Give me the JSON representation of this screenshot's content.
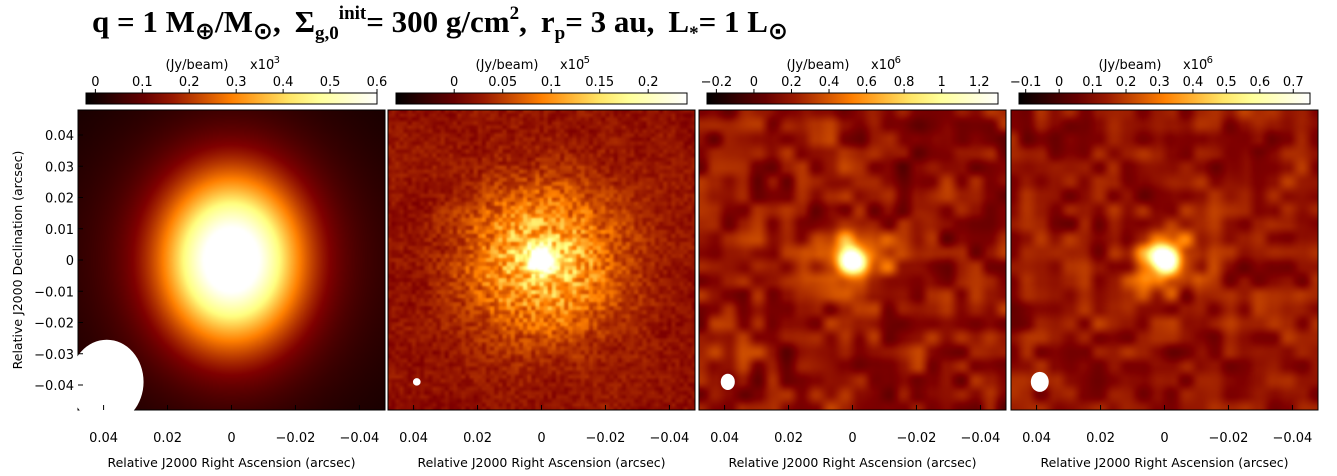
{
  "title": {
    "q": "q = 1 M",
    "earth": "⊕",
    "slash": "/M",
    "sun1": "⊙",
    "comma1": ",",
    "sigma": "Σ",
    "sigma_sub": "g,0",
    "sigma_sup": "init",
    "sigma_val": " = 300 g/cm",
    "sq": "2",
    "comma2": ",",
    "rp": "r",
    "rp_sub": "p",
    "rp_val": " = 3 au,",
    "lstar": "L",
    "lstar_sub": "*",
    "lstar_val": " = 1 L",
    "sun2": "⊙"
  },
  "chart_data": [
    {
      "type": "heatmap",
      "colorbar": {
        "label": "(Jy/beam)",
        "scale": "x10",
        "exponent": "-3",
        "range": [
          -0.02,
          0.6
        ],
        "ticks": [
          0,
          0.1,
          0.2,
          0.3,
          0.4,
          0.5,
          0.6
        ],
        "tick_labels": [
          "0",
          "0.1",
          "0.2",
          "0.3",
          "0.4",
          "0.5",
          "0.6"
        ]
      },
      "xlabel": "Relative J2000 Right Ascension (arcsec)",
      "ylabel": "Relative J2000 Declination (arcsec)",
      "xlim": [
        0.048,
        -0.048
      ],
      "ylim": [
        -0.048,
        0.048
      ],
      "xticks": [
        0.04,
        0.02,
        0,
        -0.02,
        -0.04
      ],
      "xtick_labels": [
        "0.04",
        "0.02",
        "0",
        "−0.02",
        "−0.04"
      ],
      "yticks": [
        0.04,
        0.03,
        0.02,
        0.01,
        0,
        -0.01,
        -0.02,
        -0.03,
        -0.04
      ],
      "ytick_labels": [
        "0.04",
        "0.03",
        "0.02",
        "0.01",
        "0",
        "−0.01",
        "−0.02",
        "−0.03",
        "−0.04"
      ],
      "peak": 0.6,
      "beam_major": 0.0135,
      "beam_minor": 0.0115,
      "image": "smooth",
      "noise": 0
    },
    {
      "type": "heatmap",
      "colorbar": {
        "label": "(Jy/beam)",
        "scale": "x10",
        "exponent": "-5",
        "range": [
          -0.06,
          0.24
        ],
        "ticks": [
          0,
          0.05,
          0.1,
          0.15,
          0.2
        ],
        "tick_labels": [
          "0",
          "0.05",
          "0.1",
          "0.15",
          "0.2"
        ]
      },
      "xlabel": "Relative J2000 Right Ascension (arcsec)",
      "xlim": [
        0.048,
        -0.048
      ],
      "ylim": [
        -0.048,
        0.048
      ],
      "xticks": [
        0.04,
        0.02,
        0,
        -0.02,
        -0.04
      ],
      "xtick_labels": [
        "0.04",
        "0.02",
        "0",
        "−0.02",
        "−0.04"
      ],
      "peak": 0.24,
      "beam_major": 0.0012,
      "beam_minor": 0.0012,
      "image": "grainy",
      "noise": 0.05
    },
    {
      "type": "heatmap",
      "colorbar": {
        "label": "(Jy/beam)",
        "scale": "x10",
        "exponent": "-6",
        "range": [
          -0.25,
          1.3
        ],
        "ticks": [
          -0.2,
          0,
          0.2,
          0.4,
          0.6,
          0.8,
          1,
          1.2
        ],
        "tick_labels": [
          "−0.2",
          "0",
          "0.2",
          "0.4",
          "0.6",
          "0.8",
          "1",
          "1.2"
        ]
      },
      "xlabel": "Relative J2000 Right Ascension (arcsec)",
      "xlim": [
        0.048,
        -0.048
      ],
      "ylim": [
        -0.048,
        0.048
      ],
      "xticks": [
        0.04,
        0.02,
        0,
        -0.02,
        -0.04
      ],
      "xtick_labels": [
        "0.04",
        "0.02",
        "0",
        "−0.02",
        "−0.04"
      ],
      "peak": 1.3,
      "beam_major": 0.0026,
      "beam_minor": 0.0022,
      "image": "blotchy",
      "noise": 0.12
    },
    {
      "type": "heatmap",
      "colorbar": {
        "label": "(Jy/beam)",
        "scale": "x10",
        "exponent": "-6",
        "range": [
          -0.12,
          0.75
        ],
        "ticks": [
          -0.1,
          0,
          0.1,
          0.2,
          0.3,
          0.4,
          0.5,
          0.6,
          0.7
        ],
        "tick_labels": [
          "−0.1",
          "0",
          "0.1",
          "0.2",
          "0.3",
          "0.4",
          "0.5",
          "0.6",
          "0.7"
        ]
      },
      "xlabel": "Relative J2000 Right Ascension (arcsec)",
      "xlim": [
        0.048,
        -0.048
      ],
      "ylim": [
        -0.048,
        0.048
      ],
      "xticks": [
        0.04,
        0.02,
        0,
        -0.02,
        -0.04
      ],
      "xtick_labels": [
        "0.04",
        "0.02",
        "0",
        "−0.02",
        "−0.04"
      ],
      "peak": 0.75,
      "beam_major": 0.0032,
      "beam_minor": 0.0028,
      "image": "blotchy",
      "noise": 0.1
    }
  ]
}
